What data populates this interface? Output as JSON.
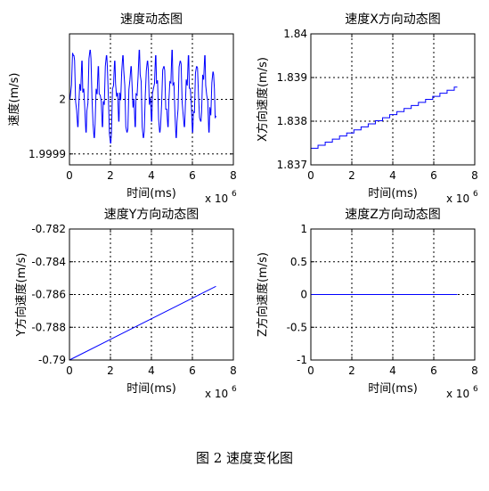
{
  "figure": {
    "caption": "图 2  速度变化图"
  },
  "chart_data": [
    {
      "type": "line",
      "title": "速度动态图",
      "xlabel": "时间(ms)",
      "ylabel": "速度(m/s)",
      "x_exponent": "x 10",
      "x_exponent_power": "6",
      "xlim": [
        0,
        8
      ],
      "ylim": [
        1.99988,
        2.00012
      ],
      "x_ticks": [
        "0",
        "2",
        "4",
        "6",
        "8"
      ],
      "y_ticks": [
        {
          "value": 1.9999,
          "label": "1.9999"
        },
        {
          "value": 2.0,
          "label": "2"
        }
      ],
      "grid": true,
      "line_color": "#0000ff",
      "series": [
        {
          "noisy": true,
          "x": [
            0,
            0.2,
            0.4,
            0.6,
            0.8,
            1.0,
            1.2,
            1.4,
            1.6,
            1.8,
            2.0,
            2.2,
            2.4,
            2.6,
            2.8,
            3.0,
            3.2,
            3.4,
            3.6,
            3.8,
            4.0,
            4.2,
            4.4,
            4.6,
            4.8,
            5.0,
            5.2,
            5.4,
            5.6,
            5.8,
            6.0,
            6.2,
            6.4,
            6.6,
            6.8,
            7.0,
            7.15
          ],
          "y": [
            2.0,
            2.00008,
            1.99995,
            2.00007,
            1.99994,
            2.00009,
            1.99993,
            2.00006,
            1.99995,
            2.00008,
            1.99992,
            2.00007,
            1.99996,
            2.00008,
            1.99994,
            2.00006,
            1.99995,
            2.00009,
            1.99993,
            2.00007,
            1.99996,
            2.00008,
            1.99994,
            2.00006,
            1.99995,
            2.00009,
            1.99993,
            2.00007,
            1.99995,
            2.00008,
            1.99994,
            2.00006,
            1.99996,
            2.00008,
            1.99994,
            2.00005,
            1.99997
          ]
        }
      ]
    },
    {
      "type": "line",
      "title": "速度X方向动态图",
      "xlabel": "时间(ms)",
      "ylabel": "X方向速度(m/s)",
      "x_exponent": "x 10",
      "x_exponent_power": "6",
      "xlim": [
        0,
        8
      ],
      "ylim": [
        1.837,
        1.84
      ],
      "x_ticks": [
        "0",
        "2",
        "4",
        "6",
        "8"
      ],
      "y_ticks": [
        {
          "value": 1.837,
          "label": "1.837"
        },
        {
          "value": 1.838,
          "label": "1.838"
        },
        {
          "value": 1.839,
          "label": "1.839"
        },
        {
          "value": 1.84,
          "label": "1.84"
        }
      ],
      "grid": true,
      "line_color": "#0000ff",
      "series": [
        {
          "step": true,
          "x": [
            0,
            0.35,
            0.7,
            1.05,
            1.4,
            1.75,
            2.1,
            2.45,
            2.8,
            3.15,
            3.5,
            3.85,
            4.2,
            4.55,
            4.9,
            5.25,
            5.6,
            5.95,
            6.3,
            6.65,
            7.0,
            7.15
          ],
          "y": [
            1.83738,
            1.83745,
            1.83752,
            1.83759,
            1.83766,
            1.83773,
            1.8378,
            1.83787,
            1.83794,
            1.83801,
            1.83808,
            1.83815,
            1.83822,
            1.83829,
            1.83836,
            1.83843,
            1.8385,
            1.83857,
            1.83864,
            1.83871,
            1.83878,
            1.83878
          ]
        }
      ]
    },
    {
      "type": "line",
      "title": "速度Y方向动态图",
      "xlabel": "时间(ms)",
      "ylabel": "Y方向速度(m/s)",
      "x_exponent": "x 10",
      "x_exponent_power": "6",
      "xlim": [
        0,
        8
      ],
      "ylim": [
        -0.79,
        -0.782
      ],
      "x_ticks": [
        "0",
        "2",
        "4",
        "6",
        "8"
      ],
      "y_ticks": [
        {
          "value": -0.79,
          "label": "-0.79"
        },
        {
          "value": -0.788,
          "label": "-0.788"
        },
        {
          "value": -0.786,
          "label": "-0.786"
        },
        {
          "value": -0.784,
          "label": "-0.784"
        },
        {
          "value": -0.782,
          "label": "-0.782"
        }
      ],
      "grid": true,
      "line_color": "#0000ff",
      "series": [
        {
          "x": [
            0,
            7.15
          ],
          "y": [
            -0.79,
            -0.7855
          ]
        }
      ]
    },
    {
      "type": "line",
      "title": "速度Z方向动态图",
      "xlabel": "时间(ms)",
      "ylabel": "Z方向速度(m/s)",
      "x_exponent": "x 10",
      "x_exponent_power": "6",
      "xlim": [
        0,
        8
      ],
      "ylim": [
        -1,
        1
      ],
      "x_ticks": [
        "0",
        "2",
        "4",
        "6",
        "8"
      ],
      "y_ticks": [
        {
          "value": -1,
          "label": "-1"
        },
        {
          "value": -0.5,
          "label": "-0.5"
        },
        {
          "value": 0,
          "label": "0"
        },
        {
          "value": 0.5,
          "label": "0.5"
        },
        {
          "value": 1,
          "label": "1"
        }
      ],
      "grid": true,
      "line_color": "#0000ff",
      "series": [
        {
          "x": [
            0,
            7.15
          ],
          "y": [
            0,
            0
          ]
        }
      ]
    }
  ]
}
